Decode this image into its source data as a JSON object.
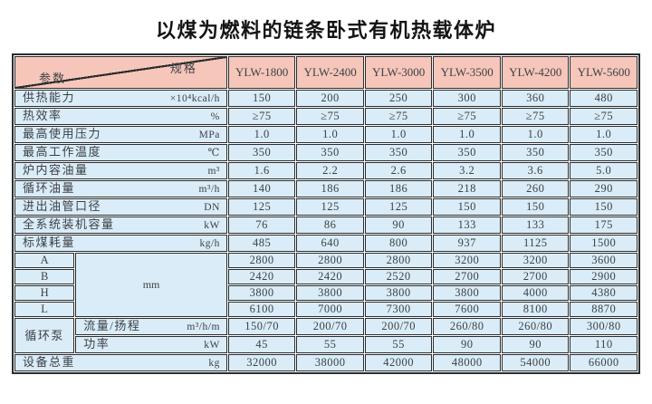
{
  "page_title": "以煤为燃料的链条卧式有机热载体炉",
  "colors": {
    "header_bg": "#f6c6ba",
    "cell_bg": "#d9ecf8",
    "border": "#2b2d2e",
    "text": "#3e4144"
  },
  "table": {
    "corner": {
      "spec_label": "规格",
      "param_label": "参数"
    },
    "models": [
      "YLW-1800",
      "YLW-2400",
      "YLW-3000",
      "YLW-3500",
      "YLW-4200",
      "YLW-5600"
    ],
    "sections": [
      {
        "type": "simple",
        "label": "供热能力",
        "unit": "×10⁴kcal/h",
        "values": [
          "150",
          "200",
          "250",
          "300",
          "360",
          "480"
        ]
      },
      {
        "type": "simple",
        "label": "热效率",
        "unit": "%",
        "values": [
          "≥75",
          "≥75",
          "≥75",
          "≥75",
          "≥75",
          "≥75"
        ]
      },
      {
        "type": "simple",
        "label": "最高使用压力",
        "unit": "MPa",
        "values": [
          "1.0",
          "1.0",
          "1.0",
          "1.0",
          "1.0",
          "1.0"
        ]
      },
      {
        "type": "simple",
        "label": "最高工作温度",
        "unit": "℃",
        "values": [
          "350",
          "350",
          "350",
          "350",
          "350",
          "350"
        ]
      },
      {
        "type": "simple",
        "label": "炉内容油量",
        "unit": "m³",
        "values": [
          "1.6",
          "2.2",
          "2.6",
          "3.2",
          "3.6",
          "5.0"
        ]
      },
      {
        "type": "simple",
        "label": "循环油量",
        "unit": "m³/h",
        "values": [
          "140",
          "186",
          "186",
          "218",
          "260",
          "290"
        ]
      },
      {
        "type": "simple",
        "label": "进出油管口径",
        "unit": "DN",
        "values": [
          "125",
          "125",
          "125",
          "150",
          "150",
          "150"
        ]
      },
      {
        "type": "simple",
        "label": "全系统装机容量",
        "unit": "kW",
        "values": [
          "76",
          "86",
          "90",
          "133",
          "133",
          "175"
        ]
      },
      {
        "type": "simple",
        "label": "标煤耗量",
        "unit": "kg/h",
        "values": [
          "485",
          "640",
          "800",
          "937",
          "1125",
          "1500"
        ]
      },
      {
        "type": "dims",
        "unit": "mm",
        "rows": [
          {
            "label": "A",
            "values": [
              "2800",
              "2800",
              "2800",
              "3200",
              "3200",
              "3600"
            ]
          },
          {
            "label": "B",
            "values": [
              "2420",
              "2420",
              "2520",
              "2700",
              "2700",
              "2900"
            ]
          },
          {
            "label": "H",
            "values": [
              "3800",
              "3800",
              "3800",
              "3800",
              "4000",
              "4380"
            ]
          },
          {
            "label": "L",
            "values": [
              "6100",
              "7000",
              "7300",
              "7600",
              "8100",
              "8870"
            ]
          }
        ]
      },
      {
        "type": "pump",
        "label": "循环泵",
        "rows": [
          {
            "label": "流量/扬程",
            "unit": "m³/h/m",
            "values": [
              "150/70",
              "200/70",
              "200/70",
              "260/80",
              "260/80",
              "300/80"
            ]
          },
          {
            "label": "功率",
            "unit": "kW",
            "values": [
              "45",
              "55",
              "55",
              "90",
              "90",
              "110"
            ]
          }
        ]
      },
      {
        "type": "simple",
        "label": "设备总重",
        "unit": "kg",
        "values": [
          "32000",
          "38000",
          "42000",
          "48000",
          "54000",
          "66000"
        ]
      }
    ]
  }
}
